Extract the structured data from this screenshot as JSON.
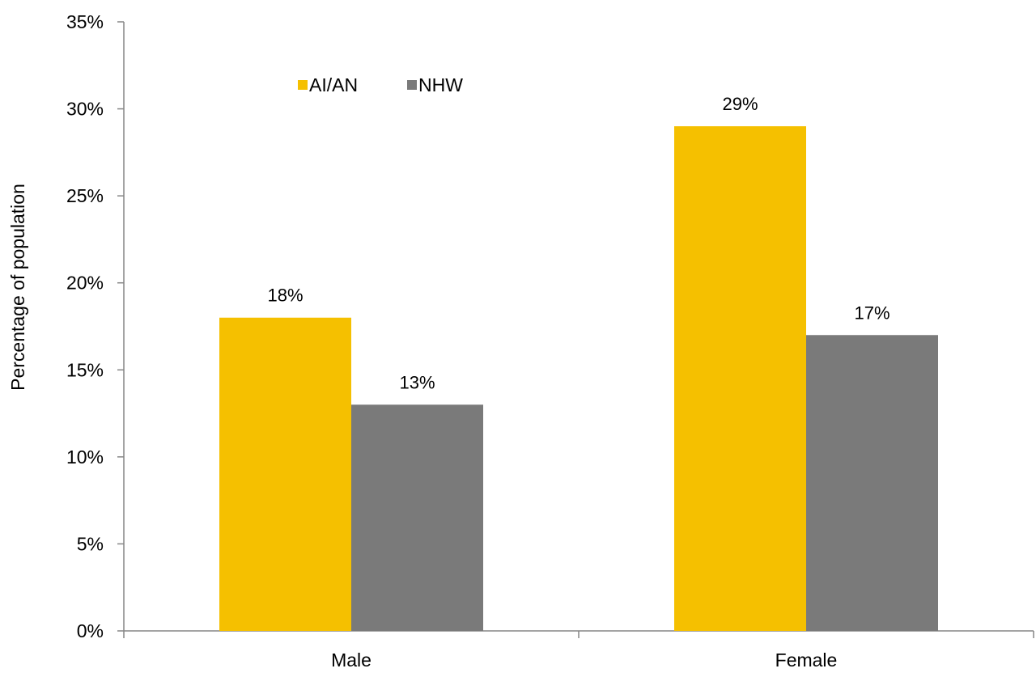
{
  "chart_data": {
    "type": "bar",
    "title": "",
    "xlabel": "",
    "ylabel": "Percentage of population",
    "categories": [
      "Male",
      "Female"
    ],
    "series": [
      {
        "name": "AI/AN",
        "values": [
          18,
          29
        ],
        "color": "#F5C000"
      },
      {
        "name": "NHW",
        "values": [
          13,
          17
        ],
        "color": "#7A7A7A"
      }
    ],
    "data_labels": [
      [
        "18%",
        "29%"
      ],
      [
        "13%",
        "17%"
      ]
    ],
    "ylim": [
      0,
      35
    ],
    "yticks": [
      0,
      5,
      10,
      15,
      20,
      25,
      30,
      35
    ],
    "ytick_labels": [
      "0%",
      "5%",
      "10%",
      "15%",
      "20%",
      "25%",
      "30%",
      "35%"
    ],
    "grid": false,
    "legend_position": "top-left"
  }
}
